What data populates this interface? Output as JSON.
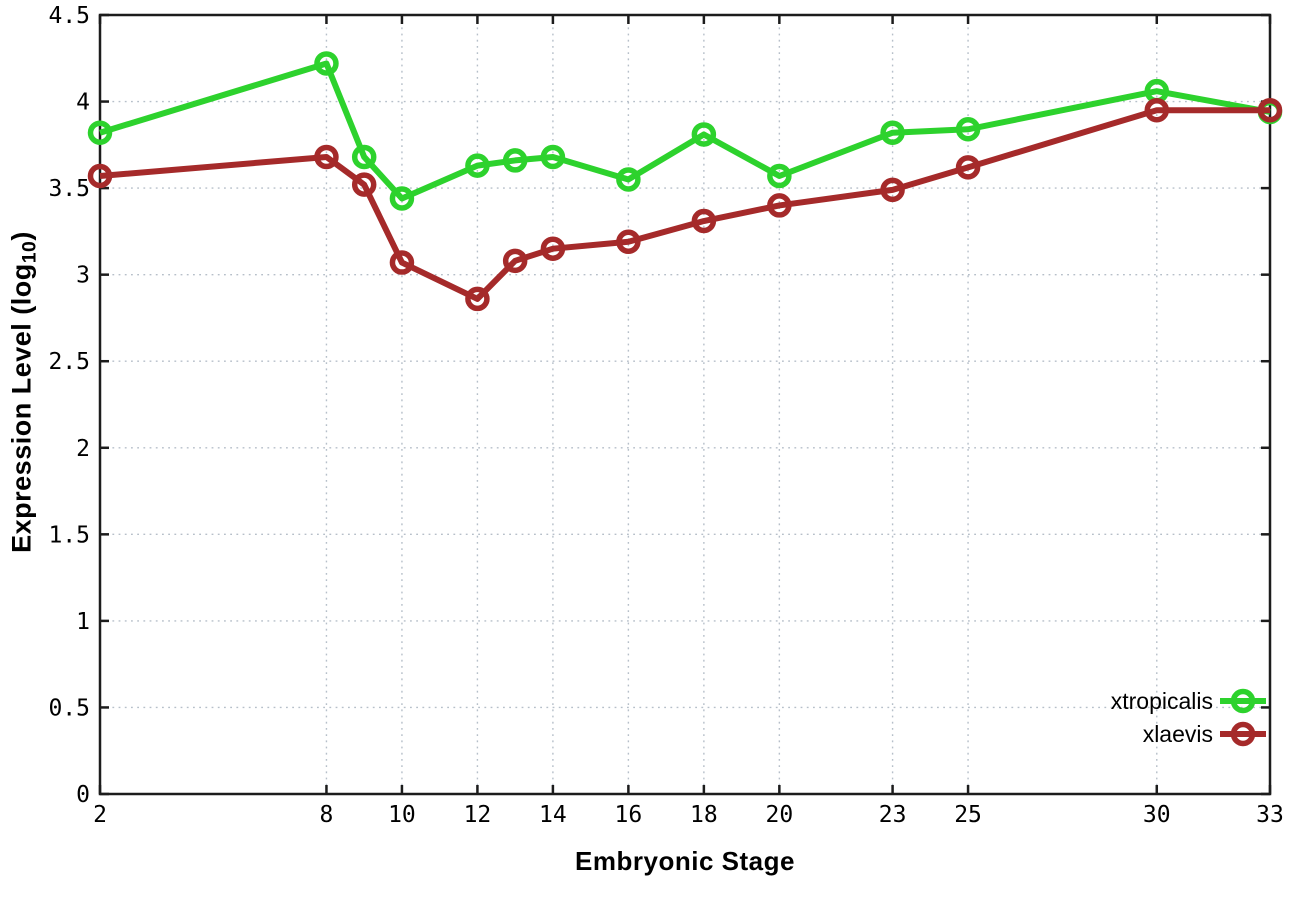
{
  "chart_data": {
    "type": "line",
    "title": "",
    "xlabel": "Embryonic Stage",
    "ylabel": "Expression Level (log10)",
    "ylabel_parts": {
      "prefix": "Expression Level (log",
      "sub": "10",
      "suffix": ")"
    },
    "x": [
      2,
      8,
      9,
      10,
      12,
      13,
      14,
      16,
      18,
      20,
      23,
      25,
      30,
      33
    ],
    "xlim": [
      2,
      33
    ],
    "ylim": [
      0,
      4.5
    ],
    "x_tick_values": [
      2,
      8,
      10,
      12,
      14,
      16,
      18,
      20,
      23,
      25,
      30,
      33
    ],
    "x_tick_labels": [
      "2",
      "8",
      "10",
      "12",
      "14",
      "16",
      "18",
      "20",
      "23",
      "25",
      "30",
      "33"
    ],
    "y_tick_values": [
      0,
      0.5,
      1,
      1.5,
      2,
      2.5,
      3,
      3.5,
      4,
      4.5
    ],
    "y_tick_labels": [
      "0",
      "0.5",
      "1",
      "1.5",
      "2",
      "2.5",
      "3",
      "3.5",
      "4",
      "4.5"
    ],
    "grid": true,
    "legend_position": "inside-bottom-right",
    "legend": [
      "xtropicalis",
      "xlaevis"
    ],
    "series": [
      {
        "name": "xtropicalis",
        "color": "#2dd22d",
        "values": [
          3.82,
          4.22,
          3.68,
          3.44,
          3.63,
          3.66,
          3.68,
          3.55,
          3.81,
          3.57,
          3.82,
          3.84,
          4.06,
          3.94
        ]
      },
      {
        "name": "xlaevis",
        "color": "#a52a2a",
        "values": [
          3.57,
          3.68,
          3.52,
          3.07,
          2.86,
          3.08,
          3.15,
          3.19,
          3.31,
          3.4,
          3.49,
          3.62,
          3.95,
          3.95
        ]
      }
    ]
  },
  "style_colors": {
    "border": "#1c1c1c",
    "grid": "#b6bfc9",
    "text": "#000000"
  }
}
